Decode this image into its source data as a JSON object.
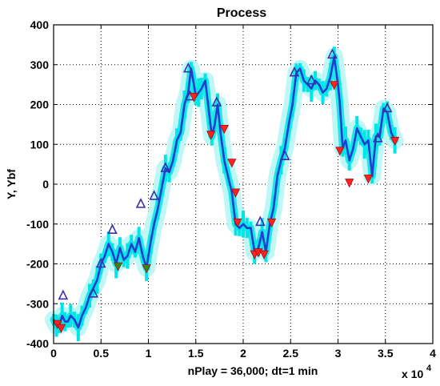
{
  "chart_data": {
    "type": "line",
    "title": "Process",
    "ylabel": "Y, Ybf",
    "xlabel_note": "nPlay = 36,000;    dt=1 min",
    "x_exponent_label": "x 10",
    "x_exponent_power": "4",
    "xlim": [
      0,
      4
    ],
    "ylim": [
      -400,
      400
    ],
    "xticks": [
      0,
      0.5,
      1,
      1.5,
      2,
      2.5,
      3,
      3.5,
      4
    ],
    "xtick_labels": [
      "0",
      "0.5",
      "1",
      "1.5",
      "2",
      "2.5",
      "3",
      "3.5",
      "4"
    ],
    "yticks": [
      -400,
      -300,
      -200,
      -100,
      0,
      100,
      200,
      300,
      400
    ],
    "ytick_labels": [
      "-400",
      "-300",
      "-200",
      "-100",
      "0",
      "100",
      "200",
      "300",
      "400"
    ],
    "grid": true,
    "colors": {
      "line": "#1f3fd0",
      "band": "#00e5e5",
      "band_light": "#bff7f7",
      "peak_marker_edge": "#3a2fb0",
      "trough_marker_fill": "#ff2020",
      "trough_marker_alt": "#2a8a20"
    },
    "series": [
      {
        "x": [
          0,
          0.03,
          0.06,
          0.09,
          0.12,
          0.15,
          0.18,
          0.22,
          0.26,
          0.3,
          0.34,
          0.38,
          0.42,
          0.46,
          0.5,
          0.54,
          0.58,
          0.62,
          0.66,
          0.7,
          0.74,
          0.78,
          0.82,
          0.86,
          0.9,
          0.94,
          0.98,
          1.02,
          1.06,
          1.1,
          1.14,
          1.18,
          1.22,
          1.26,
          1.3,
          1.34,
          1.38,
          1.42,
          1.45,
          1.48,
          1.5,
          1.53,
          1.56,
          1.6,
          1.64,
          1.67,
          1.7,
          1.73,
          1.76,
          1.8,
          1.84,
          1.88,
          1.92,
          1.96,
          2.0,
          2.04,
          2.08,
          2.12,
          2.16,
          2.2,
          2.24,
          2.28,
          2.32,
          2.36,
          2.4,
          2.44,
          2.48,
          2.52,
          2.56,
          2.6,
          2.64,
          2.68,
          2.72,
          2.76,
          2.8,
          2.84,
          2.88,
          2.92,
          2.96,
          3.0,
          3.02,
          3.05,
          3.08,
          3.12,
          3.16,
          3.2,
          3.24,
          3.28,
          3.32,
          3.36,
          3.4,
          3.44,
          3.48,
          3.52,
          3.56,
          3.6
        ],
        "y": [
          -340,
          -355,
          -355,
          -330,
          -345,
          -345,
          -330,
          -340,
          -360,
          -330,
          -310,
          -280,
          -260,
          -240,
          -200,
          -180,
          -150,
          -170,
          -200,
          -160,
          -190,
          -180,
          -150,
          -170,
          -135,
          -180,
          -210,
          -150,
          -100,
          -60,
          -10,
          40,
          30,
          60,
          110,
          130,
          200,
          230,
          290,
          250,
          220,
          230,
          240,
          260,
          180,
          120,
          150,
          200,
          130,
          60,
          20,
          -20,
          -100,
          -110,
          -100,
          -110,
          -110,
          -170,
          -160,
          -120,
          -170,
          -100,
          -60,
          20,
          60,
          90,
          150,
          200,
          280,
          290,
          260,
          250,
          240,
          260,
          250,
          230,
          240,
          270,
          320,
          250,
          200,
          90,
          110,
          60,
          90,
          140,
          120,
          100,
          110,
          20,
          120,
          120,
          190,
          180,
          130,
          110
        ],
        "peaks_x": [
          0.1,
          0.42,
          0.5,
          0.62,
          0.92,
          1.06,
          1.18,
          1.42,
          1.44,
          1.72,
          2.18,
          2.44,
          2.54,
          2.72,
          2.94,
          3.42,
          3.52
        ],
        "peaks_y": [
          -280,
          -275,
          -200,
          -115,
          -50,
          -30,
          40,
          290,
          220,
          205,
          -95,
          70,
          280,
          260,
          325,
          115,
          190
        ],
        "troughs_x": [
          0.04,
          0.08,
          0.68,
          0.98,
          1.48,
          1.66,
          1.8,
          1.88,
          1.92,
          1.94,
          2.12,
          2.16,
          2.22,
          2.3,
          2.96,
          3.02,
          3.12,
          3.32,
          3.6
        ],
        "troughs_y": [
          -350,
          -360,
          -205,
          -210,
          220,
          125,
          140,
          55,
          -20,
          -95,
          -175,
          -170,
          -175,
          -95,
          250,
          85,
          5,
          15,
          110
        ]
      }
    ]
  }
}
